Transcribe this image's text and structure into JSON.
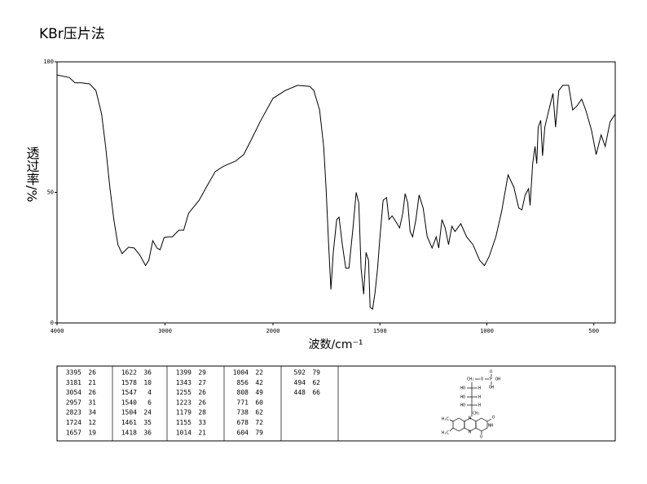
{
  "chart_data": {
    "type": "line",
    "title": "KBr压片法",
    "xlabel": "波数/cm⁻¹",
    "ylabel": "透过率/%",
    "xlim": [
      4000,
      400
    ],
    "xscale_break": 2000,
    "ylim": [
      0,
      100
    ],
    "xticks": [
      4000,
      3000,
      2000,
      1500,
      1000,
      500
    ],
    "yticks": [
      0,
      50,
      100
    ],
    "color": "#000000",
    "x": [
      4000,
      3887,
      3835,
      3774,
      3700,
      3640,
      3587,
      3550,
      3511,
      3474,
      3436,
      3398,
      3338,
      3286,
      3233,
      3180,
      3150,
      3113,
      3075,
      3045,
      3008,
      2970,
      2932,
      2872,
      2827,
      2782,
      2684,
      2609,
      2534,
      2459,
      2346,
      2271,
      2195,
      2120,
      2000,
      1943,
      1885,
      1828,
      1809,
      1782,
      1763,
      1752,
      1740,
      1729,
      1718,
      1702,
      1691,
      1676,
      1660,
      1645,
      1626,
      1611,
      1599,
      1588,
      1576,
      1565,
      1553,
      1546,
      1534,
      1523,
      1511,
      1500,
      1485,
      1469,
      1458,
      1443,
      1427,
      1408,
      1393,
      1382,
      1370,
      1359,
      1347,
      1332,
      1317,
      1298,
      1279,
      1256,
      1237,
      1225,
      1210,
      1195,
      1179,
      1164,
      1149,
      1122,
      1095,
      1065,
      1034,
      1011,
      989,
      958,
      931,
      901,
      874,
      851,
      836,
      821,
      805,
      798,
      786,
      775,
      767,
      760,
      748,
      740,
      729,
      710,
      691,
      679,
      664,
      645,
      618,
      599,
      580,
      557,
      538,
      511,
      489,
      466,
      447,
      424,
      400
    ],
    "values": [
      95,
      94,
      92,
      92,
      91.6,
      89,
      80,
      67.6,
      52,
      39.6,
      30,
      26.5,
      29,
      28.7,
      26,
      22,
      24,
      31.5,
      28.7,
      28,
      32.7,
      33,
      33,
      35.5,
      35.5,
      42,
      47,
      52.6,
      58,
      60,
      62,
      64.5,
      70.7,
      77,
      86,
      89,
      91,
      90.6,
      89,
      81.6,
      67.6,
      52,
      30,
      12.8,
      27,
      39.6,
      40.5,
      30,
      21,
      21,
      36.4,
      50,
      46,
      21,
      11,
      27,
      24,
      6,
      5.3,
      11.5,
      21,
      33,
      47,
      48,
      39.6,
      41,
      39,
      36.4,
      42,
      49.5,
      46,
      35,
      33,
      39.6,
      49,
      44,
      33,
      28.7,
      33,
      28.7,
      39.6,
      36.4,
      30,
      37,
      35,
      38,
      33,
      30,
      24,
      22,
      25.5,
      33,
      42.7,
      56.7,
      52,
      44,
      43.3,
      49,
      51.4,
      45,
      61,
      67.6,
      61,
      75,
      77.6,
      64,
      75,
      81.6,
      87.9,
      75,
      89,
      91,
      91,
      81.6,
      83,
      85.7,
      81.6,
      73.8,
      64.5,
      72,
      67.6,
      77,
      80
    ]
  },
  "peak_table": [
    [
      [
        3395,
        26
      ],
      [
        3181,
        21
      ],
      [
        3054,
        26
      ],
      [
        2957,
        31
      ],
      [
        2823,
        34
      ],
      [
        1724,
        12
      ],
      [
        1657,
        19
      ]
    ],
    [
      [
        1622,
        36
      ],
      [
        1578,
        10
      ],
      [
        1547,
        4
      ],
      [
        1540,
        6
      ],
      [
        1504,
        24
      ],
      [
        1461,
        35
      ],
      [
        1418,
        36
      ]
    ],
    [
      [
        1399,
        29
      ],
      [
        1343,
        27
      ],
      [
        1255,
        26
      ],
      [
        1223,
        26
      ],
      [
        1179,
        28
      ],
      [
        1155,
        33
      ],
      [
        1014,
        21
      ]
    ],
    [
      [
        1004,
        22
      ],
      [
        856,
        42
      ],
      [
        808,
        49
      ],
      [
        771,
        60
      ],
      [
        738,
        62
      ],
      [
        678,
        72
      ],
      [
        604,
        79
      ]
    ],
    [
      [
        592,
        79
      ],
      [
        494,
        62
      ],
      [
        448,
        66
      ]
    ]
  ],
  "structure": {
    "labels": [
      "CH₂",
      "O",
      "P",
      "OH",
      "O",
      "OH",
      "HO",
      "H",
      "HO",
      "H",
      "HO",
      "H",
      "CH₂",
      "N",
      "N",
      "H₃C",
      "H₃C",
      "NH",
      "O",
      "O"
    ]
  }
}
